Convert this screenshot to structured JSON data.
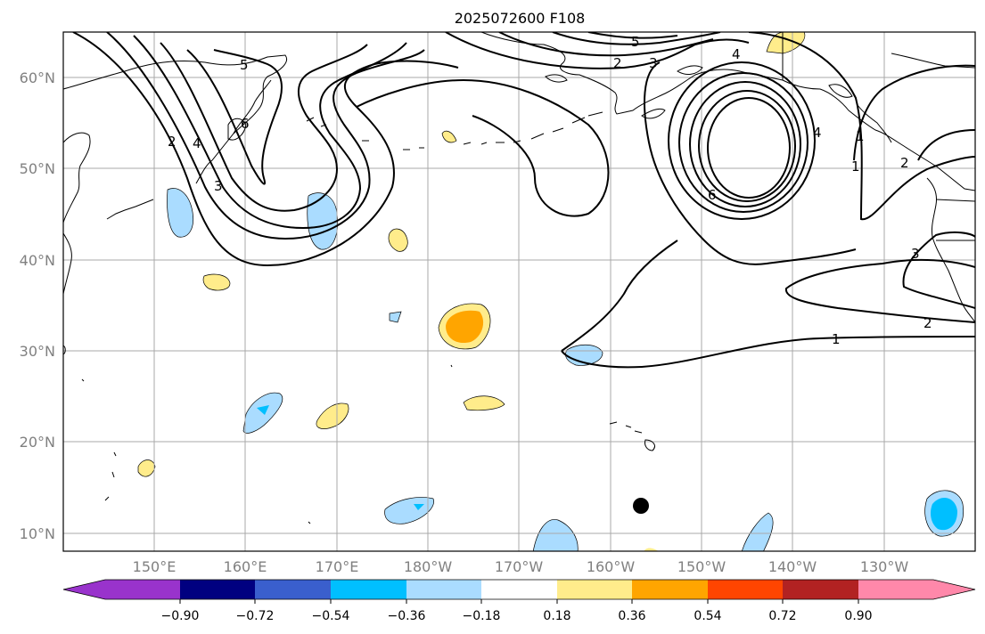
{
  "title": "2025072600 F108",
  "map": {
    "lon_labels": [
      "150°E",
      "160°E",
      "170°E",
      "180°W",
      "170°W",
      "160°W",
      "150°W",
      "140°W",
      "130°W"
    ],
    "lat_labels": [
      "60°N",
      "50°N",
      "40°N",
      "30°N",
      "20°N",
      "10°N"
    ],
    "contour_labels": [
      "6",
      "5",
      "4",
      "3",
      "2",
      "4",
      "3",
      "2",
      "1",
      "6",
      "5",
      "4",
      "1",
      "3",
      "2",
      "2",
      "1"
    ],
    "marker": "black-dot"
  },
  "colorbar": {
    "ticks": [
      "−0.90",
      "−0.72",
      "−0.54",
      "−0.36",
      "−0.18",
      "0.18",
      "0.36",
      "0.54",
      "0.72",
      "0.90"
    ],
    "colors": [
      "#9933cc",
      "#000080",
      "#3a5fcd",
      "#00bfff",
      "#aadcff",
      "#ffffff",
      "#ffec8b",
      "#ffa500",
      "#ff4500",
      "#b22222",
      "#ff88aa"
    ]
  }
}
